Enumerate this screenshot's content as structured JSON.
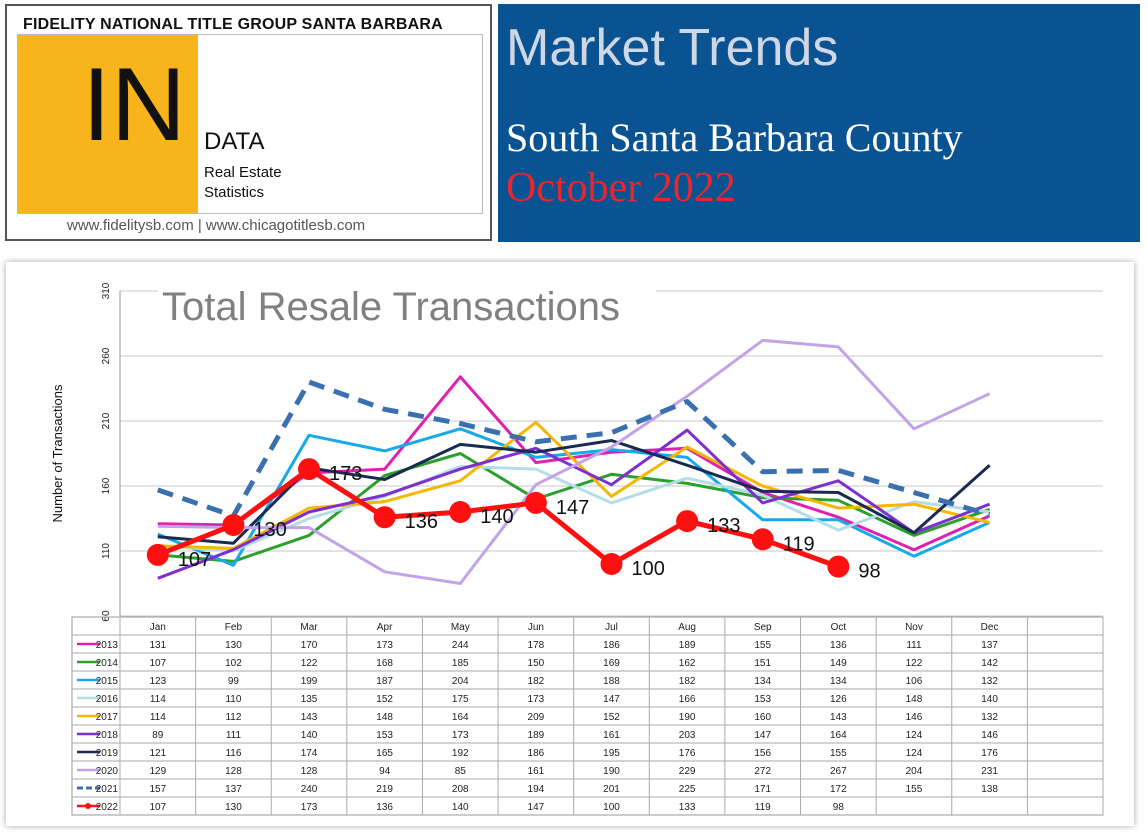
{
  "header": {
    "org": "FIDELITY NATIONAL TITLE GROUP SANTA BARBARA",
    "logo_in": "IN",
    "logo_data": "DATA",
    "logo_sub1": "Real Estate",
    "logo_sub2": "Statistics",
    "urls": "www.fidelitysb.com | www.chicagotitlesb.com",
    "title": "Market Trends",
    "region": "South Santa Barbara County",
    "date": "October 2022"
  },
  "colors": {
    "banner": "#0a5393",
    "logo_yellow": "#f7b51b",
    "date_red": "#e8262b"
  },
  "chart_data": {
    "type": "line",
    "title": "Total Resale Transactions",
    "ylabel": "Number of Transactions",
    "xlabel": "",
    "ylim": [
      60,
      310
    ],
    "yticks": [
      60,
      110,
      160,
      210,
      260,
      310
    ],
    "grid": true,
    "categories": [
      "Jan",
      "Feb",
      "Mar",
      "Apr",
      "May",
      "Jun",
      "Jul",
      "Aug",
      "Sep",
      "Oct",
      "Nov",
      "Dec"
    ],
    "series": [
      {
        "name": "2013",
        "color": "#e020b0",
        "style": "solid",
        "values": [
          131,
          130,
          170,
          173,
          244,
          178,
          186,
          189,
          155,
          136,
          111,
          137
        ]
      },
      {
        "name": "2014",
        "color": "#2ca02c",
        "style": "solid",
        "values": [
          107,
          102,
          122,
          168,
          185,
          150,
          169,
          162,
          151,
          149,
          122,
          142
        ]
      },
      {
        "name": "2015",
        "color": "#17a9e8",
        "style": "solid",
        "values": [
          123,
          99,
          199,
          187,
          204,
          182,
          188,
          182,
          134,
          134,
          106,
          132
        ]
      },
      {
        "name": "2016",
        "color": "#b5dde8",
        "style": "solid",
        "values": [
          114,
          110,
          135,
          152,
          175,
          173,
          147,
          166,
          153,
          126,
          148,
          140
        ]
      },
      {
        "name": "2017",
        "color": "#f5b800",
        "style": "solid",
        "values": [
          114,
          112,
          143,
          148,
          164,
          209,
          152,
          190,
          160,
          143,
          146,
          132
        ]
      },
      {
        "name": "2018",
        "color": "#7e2fd0",
        "style": "solid",
        "values": [
          89,
          111,
          140,
          153,
          173,
          189,
          161,
          203,
          147,
          164,
          124,
          146
        ]
      },
      {
        "name": "2019",
        "color": "#1a2a50",
        "style": "solid",
        "values": [
          121,
          116,
          174,
          165,
          192,
          186,
          195,
          176,
          156,
          155,
          124,
          176
        ]
      },
      {
        "name": "2020",
        "color": "#c3a3e8",
        "style": "solid",
        "values": [
          129,
          128,
          128,
          94,
          85,
          161,
          190,
          229,
          272,
          267,
          204,
          231
        ]
      },
      {
        "name": "2021",
        "color": "#3a6fb0",
        "style": "dashed",
        "values": [
          157,
          137,
          240,
          219,
          208,
          194,
          201,
          225,
          171,
          172,
          155,
          138
        ]
      },
      {
        "name": "2022",
        "color": "#ff1010",
        "style": "marker",
        "values": [
          107,
          130,
          173,
          136,
          140,
          147,
          100,
          133,
          119,
          98,
          null,
          null
        ]
      }
    ]
  }
}
